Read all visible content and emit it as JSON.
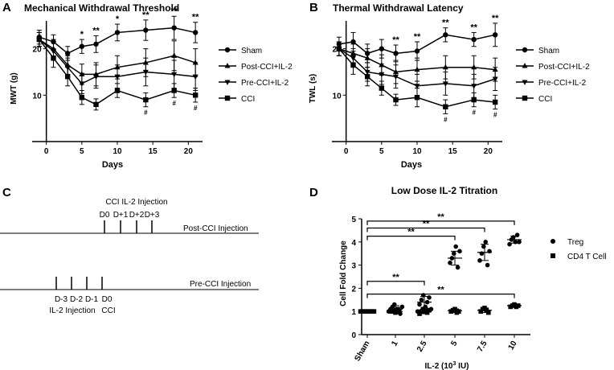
{
  "chart_data": [
    {
      "panel": "A",
      "type": "line",
      "title": "Mechanical Withdrawal Threshold",
      "xlabel": "Days",
      "ylabel": "MWT (g)",
      "xlim": [
        -2,
        22
      ],
      "ylim": [
        0,
        26
      ],
      "xticks": [
        0,
        5,
        10,
        15,
        20
      ],
      "yticks": [
        10,
        20
      ],
      "x": [
        -1,
        1,
        3,
        5,
        7,
        10,
        14,
        18,
        21
      ],
      "series": [
        {
          "name": "Sham",
          "marker": "circle",
          "values": [
            22.5,
            21.5,
            19.0,
            20.5,
            21.0,
            23.5,
            24.0,
            24.5,
            23.5
          ],
          "err": [
            1.5,
            1.5,
            1.5,
            1.5,
            1.8,
            1.8,
            2.2,
            2.5,
            2.2
          ]
        },
        {
          "name": "Post-CCI+IL-2",
          "marker": "triangle-up",
          "values": [
            22.0,
            20.0,
            16.5,
            14.5,
            14.5,
            16.0,
            17.0,
            18.5,
            17.0
          ],
          "err": [
            1.5,
            2.0,
            2.0,
            2.2,
            2.5,
            2.5,
            3.0,
            3.2,
            3.0
          ]
        },
        {
          "name": "Pre-CCI+IL-2",
          "marker": "triangle-down",
          "values": [
            22.0,
            19.5,
            16.0,
            12.5,
            14.0,
            14.0,
            15.0,
            14.5,
            14.0
          ],
          "err": [
            1.5,
            2.0,
            2.0,
            2.2,
            2.5,
            2.5,
            3.0,
            3.0,
            3.0
          ]
        },
        {
          "name": "CCI",
          "marker": "square",
          "values": [
            22.0,
            18.0,
            14.0,
            9.5,
            8.0,
            11.0,
            9.0,
            11.0,
            10.0
          ],
          "err": [
            1.5,
            2.0,
            2.0,
            1.5,
            1.2,
            1.5,
            1.5,
            1.5,
            1.5
          ]
        }
      ],
      "significance": [
        {
          "x": 5,
          "label": "*",
          "kind": "top"
        },
        {
          "x": 7,
          "label": "**",
          "kind": "top"
        },
        {
          "x": 10,
          "label": "*",
          "kind": "top"
        },
        {
          "x": 14,
          "label": "**",
          "kind": "top"
        },
        {
          "x": 18,
          "label": "**",
          "kind": "top"
        },
        {
          "x": 21,
          "label": "**",
          "kind": "top"
        },
        {
          "x": 14,
          "label": "#",
          "kind": "bottom"
        },
        {
          "x": 18,
          "label": "#",
          "kind": "bottom"
        },
        {
          "x": 21,
          "label": "#",
          "kind": "bottom"
        }
      ],
      "legend": "right"
    },
    {
      "panel": "B",
      "type": "line",
      "title": "Thermal Withdrawal Latency",
      "xlabel": "Days",
      "ylabel": "TWL (s)",
      "xlim": [
        -2,
        22
      ],
      "ylim": [
        0,
        26
      ],
      "xticks": [
        0,
        5,
        10,
        15,
        20
      ],
      "yticks": [
        10,
        20
      ],
      "x": [
        -1,
        1,
        3,
        5,
        7,
        10,
        14,
        18,
        21
      ],
      "series": [
        {
          "name": "Sham",
          "marker": "circle",
          "values": [
            21.0,
            21.5,
            19.0,
            20.0,
            19.0,
            19.5,
            23.0,
            22.0,
            23.0
          ],
          "err": [
            1.5,
            2.0,
            2.0,
            2.0,
            1.8,
            2.0,
            1.5,
            1.5,
            2.5
          ]
        },
        {
          "name": "Post-CCI+IL-2",
          "marker": "triangle-up",
          "values": [
            20.0,
            19.0,
            18.0,
            16.5,
            15.0,
            15.5,
            16.0,
            16.0,
            15.5
          ],
          "err": [
            1.5,
            2.0,
            2.0,
            2.2,
            2.5,
            2.5,
            2.5,
            2.5,
            2.5
          ]
        },
        {
          "name": "Pre-CCI+IL-2",
          "marker": "triangle-down",
          "values": [
            20.0,
            18.0,
            15.0,
            14.5,
            14.0,
            12.0,
            12.5,
            12.0,
            13.5
          ],
          "err": [
            1.5,
            2.0,
            2.0,
            2.2,
            2.5,
            2.5,
            2.5,
            2.5,
            2.5
          ]
        },
        {
          "name": "CCI",
          "marker": "square",
          "values": [
            20.0,
            16.5,
            14.0,
            11.5,
            9.0,
            9.5,
            7.5,
            9.0,
            8.5
          ],
          "err": [
            1.5,
            2.0,
            2.0,
            1.5,
            1.2,
            2.0,
            1.5,
            1.5,
            1.5
          ]
        }
      ],
      "significance": [
        {
          "x": 7,
          "label": "**",
          "kind": "top"
        },
        {
          "x": 10,
          "label": "**",
          "kind": "top"
        },
        {
          "x": 14,
          "label": "**",
          "kind": "top"
        },
        {
          "x": 18,
          "label": "**",
          "kind": "top"
        },
        {
          "x": 21,
          "label": "**",
          "kind": "top"
        },
        {
          "x": 14,
          "label": "#",
          "kind": "bottom"
        },
        {
          "x": 18,
          "label": "#",
          "kind": "bottom"
        },
        {
          "x": 21,
          "label": "#",
          "kind": "bottom"
        }
      ],
      "legend": "right"
    },
    {
      "panel": "C",
      "type": "diagram",
      "timelines": [
        {
          "name": "Post-CCI Injection",
          "label": "Post-CCI Injection",
          "header_line1": "CCI IL-2 Injection",
          "ticks": [
            "D0",
            "D+1",
            "D+2",
            "D+3"
          ]
        },
        {
          "name": "Pre-CCI Injection",
          "label": "Pre-CCI Injection",
          "ticks": [
            "D-3",
            "D-2",
            "D-1",
            "D0"
          ],
          "footer_line2_left": "IL-2 Injection",
          "footer_line2_right": "CCI"
        }
      ]
    },
    {
      "panel": "D",
      "type": "scatter",
      "title": "Low Dose IL-2 Titration",
      "xlabel": "IL-2 (10",
      "xlabel_sup": "3",
      "xlabel_unit": " IU)",
      "ylabel": "Cell Fold Change",
      "ylim": [
        0,
        5
      ],
      "yticks": [
        0,
        1,
        2,
        3,
        4,
        5
      ],
      "categories": [
        "Sham",
        "1",
        "2.5",
        "5",
        "7.5",
        "10"
      ],
      "series": [
        {
          "name": "Treg",
          "marker": "circle",
          "points": [
            [
              1.0,
              1.0,
              1.0,
              1.0,
              1.0,
              1.0,
              1.0,
              1.0
            ],
            [
              1.0,
              1.1,
              1.2,
              1.3,
              1.0,
              1.1,
              0.9,
              1.2
            ],
            [
              1.0,
              1.3,
              1.5,
              1.7,
              1.2,
              1.4,
              1.6,
              1.1
            ],
            [
              3.1,
              3.3,
              3.5,
              3.8,
              2.9,
              3.6
            ],
            [
              3.2,
              3.5,
              3.8,
              4.0,
              3.0,
              3.6
            ],
            [
              3.9,
              4.1,
              4.2,
              4.0,
              4.3,
              4.0
            ]
          ],
          "mean": [
            1.0,
            1.1,
            1.4,
            3.3,
            3.55,
            4.1
          ],
          "err": [
            0.0,
            0.15,
            0.25,
            0.3,
            0.35,
            0.15
          ]
        },
        {
          "name": "CD4 T Cell",
          "marker": "square",
          "points": [
            [
              1.0,
              1.0,
              1.0,
              1.0,
              1.0,
              1.0,
              1.0,
              1.0
            ],
            [
              1.0,
              1.05,
              0.95,
              1.1,
              1.0
            ],
            [
              0.9,
              1.0,
              1.1,
              1.0,
              0.95,
              1.05
            ],
            [
              1.0,
              1.05,
              1.1,
              0.95,
              1.0
            ],
            [
              1.0,
              1.1,
              1.15,
              1.05,
              0.95
            ],
            [
              1.2,
              1.25,
              1.3,
              1.2,
              1.25
            ]
          ],
          "mean": [
            1.0,
            1.0,
            1.0,
            1.03,
            1.05,
            1.25
          ],
          "err": [
            0.0,
            0.05,
            0.1,
            0.08,
            0.1,
            0.05
          ]
        }
      ],
      "brackets": [
        {
          "from": 0,
          "to": 5,
          "level": 4.9,
          "label": "**"
        },
        {
          "from": 0,
          "to": 4,
          "level": 4.6,
          "label": "**"
        },
        {
          "from": 0,
          "to": 3,
          "level": 4.25,
          "label": "**"
        },
        {
          "from": 0,
          "to": 2,
          "level": 2.3,
          "label": "**"
        },
        {
          "from": 0,
          "to": 5,
          "level": 1.75,
          "label": "**"
        }
      ],
      "legend": "right"
    }
  ],
  "panel_labels": [
    "A",
    "B",
    "C",
    "D"
  ]
}
